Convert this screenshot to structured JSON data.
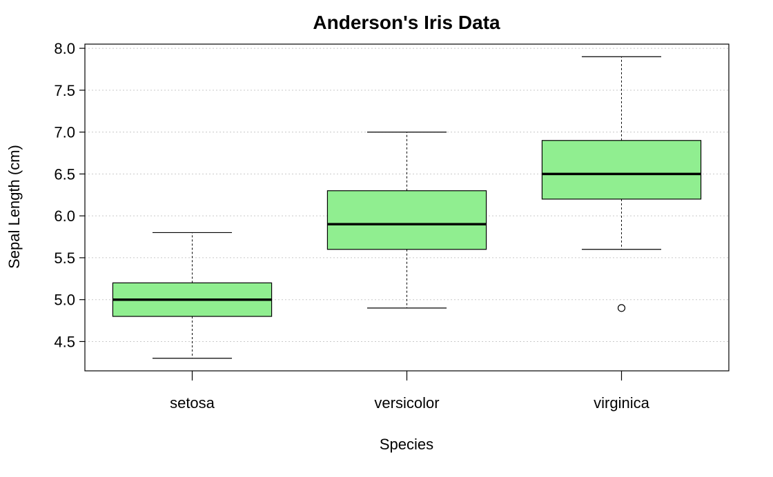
{
  "chart_data": {
    "type": "boxplot",
    "title": "Anderson's Iris Data",
    "xlabel": "Species",
    "ylabel": "Sepal Length (cm)",
    "ylim": [
      4.15,
      8.05
    ],
    "yticks": [
      4.5,
      5.0,
      5.5,
      6.0,
      6.5,
      7.0,
      7.5,
      8.0
    ],
    "ytick_labels": [
      "4.5",
      "5.0",
      "5.5",
      "6.0",
      "6.5",
      "7.0",
      "7.5",
      "8.0"
    ],
    "grid": "horizontal dotted",
    "box_color": "#90ee90",
    "categories": [
      "setosa",
      "versicolor",
      "virginica"
    ],
    "boxes": [
      {
        "category": "setosa",
        "whisker_low": 4.3,
        "q1": 4.8,
        "median": 5.0,
        "q3": 5.2,
        "whisker_high": 5.8,
        "outliers": []
      },
      {
        "category": "versicolor",
        "whisker_low": 4.9,
        "q1": 5.6,
        "median": 5.9,
        "q3": 6.3,
        "whisker_high": 7.0,
        "outliers": []
      },
      {
        "category": "virginica",
        "whisker_low": 5.6,
        "q1": 6.2,
        "median": 6.5,
        "q3": 6.9,
        "whisker_high": 7.9,
        "outliers": [
          4.9
        ]
      }
    ]
  }
}
